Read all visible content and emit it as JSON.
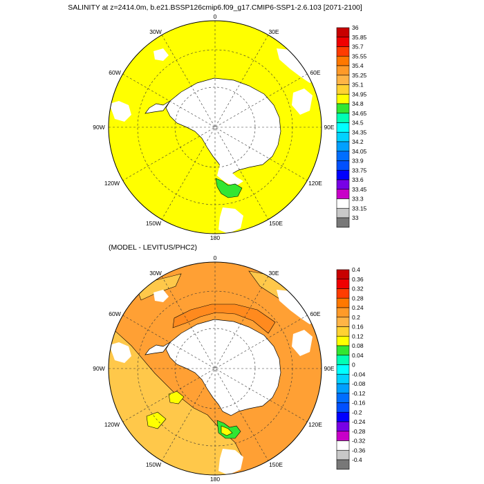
{
  "panels": [
    {
      "title": "SALINITY at z=2414.0m, b.e21.BSSP126cmip6.f09_g17.CMIP6-SSP1-2.6.103 [2071-2100]",
      "field_color": "#FFFF00",
      "colorbar": {
        "labels": [
          "36",
          "35.85",
          "35.7",
          "35.55",
          "35.4",
          "35.25",
          "35.1",
          "34.95",
          "34.8",
          "34.65",
          "34.5",
          "34.35",
          "34.2",
          "34.05",
          "33.9",
          "33.75",
          "33.6",
          "33.45",
          "33.3",
          "33.15",
          "33"
        ],
        "colors": [
          "#C80000",
          "#F00000",
          "#FF3C00",
          "#FF7800",
          "#FF9A28",
          "#FFB446",
          "#FFD232",
          "#FFFF00",
          "#32E632",
          "#00FFB4",
          "#00FFFF",
          "#00D2FF",
          "#00A0FF",
          "#006EFF",
          "#0050FF",
          "#0000FF",
          "#7800E6",
          "#C800C8",
          "#FFFFFF",
          "#C8C8C8",
          "#787878"
        ]
      },
      "longitude_labels": [
        "0",
        "30E",
        "60E",
        "90E",
        "120E",
        "150E",
        "180",
        "150W",
        "120W",
        "90W",
        "60W",
        "30W"
      ]
    },
    {
      "title": "(MODEL - LEVITUS/PHC2)",
      "field_color": "#FFA034",
      "colorbar": {
        "labels": [
          "0.4",
          "0.36",
          "0.32",
          "0.28",
          "0.24",
          "0.2",
          "0.16",
          "0.12",
          "0.08",
          "0.04",
          "0",
          "-0.04",
          "-0.08",
          "-0.12",
          "-0.16",
          "-0.2",
          "-0.24",
          "-0.28",
          "-0.32",
          "-0.36",
          "-0.4"
        ],
        "colors": [
          "#C80000",
          "#F00000",
          "#FF3C00",
          "#FF7800",
          "#FF9A28",
          "#FFB446",
          "#FFD232",
          "#FFFF00",
          "#32E632",
          "#00FFB4",
          "#00FFFF",
          "#00D2FF",
          "#00A0FF",
          "#006EFF",
          "#0050FF",
          "#0000FF",
          "#7800E6",
          "#C800C8",
          "#FFFFFF",
          "#C8C8C8",
          "#787878"
        ]
      },
      "longitude_labels": [
        "0",
        "30E",
        "60E",
        "90E",
        "120E",
        "150E",
        "180",
        "150W",
        "120W",
        "90W",
        "60W",
        "30W"
      ]
    }
  ],
  "land_color": "#FFFFFF",
  "ocean_accent_color": "#32E632",
  "projection": "polar-stereographic-south"
}
